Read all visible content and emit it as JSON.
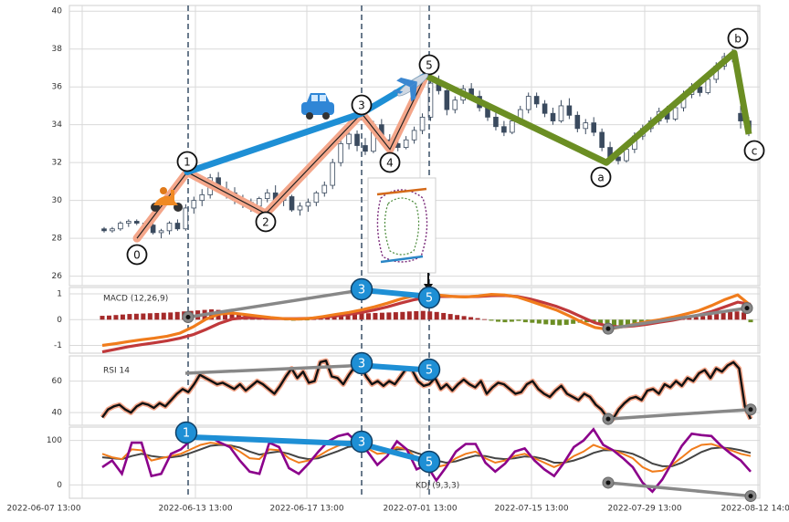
{
  "chart_data": [
    {
      "type": "candlestick",
      "panel": "price",
      "ylim": [
        25.5,
        40.3
      ],
      "yticks": [
        26,
        28,
        30,
        32,
        34,
        36,
        38,
        40
      ],
      "ohlc": [
        [
          28.5,
          28.6,
          28.3,
          28.4
        ],
        [
          28.4,
          28.6,
          28.3,
          28.5
        ],
        [
          28.5,
          28.9,
          28.4,
          28.8
        ],
        [
          28.8,
          29.0,
          28.6,
          28.9
        ],
        [
          28.9,
          29.0,
          28.7,
          28.8
        ],
        [
          28.8,
          28.9,
          28.6,
          28.7
        ],
        [
          28.7,
          28.8,
          28.2,
          28.3
        ],
        [
          28.3,
          28.5,
          28.0,
          28.4
        ],
        [
          28.4,
          28.9,
          28.2,
          28.8
        ],
        [
          28.8,
          29.0,
          28.4,
          28.5
        ],
        [
          28.5,
          29.8,
          28.4,
          29.6
        ],
        [
          29.6,
          30.2,
          29.3,
          30.0
        ],
        [
          30.0,
          30.6,
          29.7,
          30.3
        ],
        [
          30.3,
          31.4,
          30.1,
          31.2
        ],
        [
          31.2,
          31.5,
          30.4,
          30.6
        ],
        [
          30.6,
          31.0,
          30.1,
          30.4
        ],
        [
          30.4,
          30.7,
          29.8,
          30.0
        ],
        [
          30.0,
          30.3,
          29.6,
          29.9
        ],
        [
          29.9,
          30.1,
          29.4,
          29.7
        ],
        [
          29.7,
          30.2,
          29.5,
          30.1
        ],
        [
          30.1,
          30.6,
          29.9,
          30.4
        ],
        [
          30.4,
          30.8,
          29.9,
          30.0
        ],
        [
          30.0,
          30.4,
          29.7,
          30.2
        ],
        [
          30.2,
          30.3,
          29.4,
          29.5
        ],
        [
          29.5,
          29.9,
          29.2,
          29.7
        ],
        [
          29.7,
          30.1,
          29.4,
          29.9
        ],
        [
          29.9,
          30.5,
          29.7,
          30.4
        ],
        [
          30.4,
          31.0,
          30.2,
          30.8
        ],
        [
          30.8,
          32.2,
          30.6,
          32.0
        ],
        [
          32.0,
          33.2,
          31.8,
          33.0
        ],
        [
          33.0,
          33.8,
          32.7,
          33.5
        ],
        [
          33.5,
          33.7,
          32.6,
          32.9
        ],
        [
          32.9,
          33.3,
          32.4,
          32.6
        ],
        [
          32.6,
          34.2,
          32.5,
          34.0
        ],
        [
          34.0,
          34.3,
          33.0,
          33.2
        ],
        [
          33.2,
          33.5,
          32.8,
          33.0
        ],
        [
          33.0,
          33.3,
          32.6,
          32.8
        ],
        [
          32.8,
          33.4,
          32.7,
          33.2
        ],
        [
          33.2,
          33.9,
          33.0,
          33.7
        ],
        [
          33.7,
          34.6,
          33.5,
          34.4
        ],
        [
          34.4,
          36.5,
          34.2,
          36.2
        ],
        [
          36.2,
          36.6,
          35.6,
          35.8
        ],
        [
          35.8,
          36.0,
          34.5,
          34.8
        ],
        [
          34.8,
          35.5,
          34.6,
          35.3
        ],
        [
          35.3,
          36.1,
          35.1,
          35.9
        ],
        [
          35.9,
          36.2,
          35.3,
          35.5
        ],
        [
          35.5,
          35.8,
          34.7,
          34.9
        ],
        [
          34.9,
          35.2,
          34.2,
          34.4
        ],
        [
          34.4,
          34.7,
          33.7,
          33.9
        ],
        [
          33.9,
          34.2,
          33.4,
          33.6
        ],
        [
          33.6,
          34.4,
          33.5,
          34.2
        ],
        [
          34.2,
          35.0,
          34.0,
          34.8
        ],
        [
          34.8,
          35.7,
          34.6,
          35.5
        ],
        [
          35.5,
          35.7,
          34.9,
          35.1
        ],
        [
          35.1,
          35.3,
          34.4,
          34.6
        ],
        [
          34.6,
          34.9,
          34.0,
          34.2
        ],
        [
          34.2,
          35.3,
          34.1,
          35.0
        ],
        [
          35.0,
          35.4,
          34.3,
          34.5
        ],
        [
          34.5,
          34.7,
          33.6,
          33.8
        ],
        [
          33.8,
          34.3,
          33.5,
          34.1
        ],
        [
          34.1,
          34.4,
          33.4,
          33.6
        ],
        [
          33.6,
          33.8,
          32.6,
          32.8
        ],
        [
          32.8,
          33.1,
          32.1,
          32.3
        ],
        [
          32.3,
          32.5,
          31.9,
          32.1
        ],
        [
          32.1,
          32.9,
          32.0,
          32.7
        ],
        [
          32.7,
          33.6,
          32.5,
          33.4
        ],
        [
          33.4,
          34.0,
          33.2,
          33.8
        ],
        [
          33.8,
          34.4,
          33.6,
          34.2
        ],
        [
          34.2,
          34.9,
          34.0,
          34.7
        ],
        [
          34.7,
          35.0,
          34.1,
          34.3
        ],
        [
          34.3,
          35.1,
          34.2,
          34.9
        ],
        [
          34.9,
          35.8,
          34.7,
          35.6
        ],
        [
          35.6,
          36.2,
          35.4,
          36.0
        ],
        [
          36.0,
          36.3,
          35.5,
          35.7
        ],
        [
          35.7,
          36.6,
          35.6,
          36.4
        ],
        [
          36.4,
          37.3,
          36.2,
          37.1
        ],
        [
          37.1,
          37.8,
          36.9,
          37.6
        ],
        [
          37.6,
          38.0,
          37.3,
          37.5
        ],
        [
          34.6,
          35.0,
          33.8,
          34.2
        ],
        [
          34.2,
          34.4,
          33.4,
          33.6
        ]
      ],
      "elliott_impulse": {
        "labels": [
          "0",
          "1",
          "2",
          "3",
          "4",
          "5"
        ],
        "values": [
          28.0,
          31.5,
          29.3,
          34.6,
          32.7,
          36.6
        ]
      },
      "elliott_correction": {
        "labels": [
          "b",
          "c",
          "a"
        ],
        "values": [
          37.8,
          33.5,
          32.0
        ]
      },
      "wave_circle_labels": [
        "0",
        "1",
        "2",
        "3",
        "4",
        "5",
        "a",
        "b",
        "c"
      ]
    },
    {
      "type": "line",
      "panel": "macd",
      "title": "MACD (12,26,9)",
      "ylim": [
        -1.3,
        1.25
      ],
      "yticks": [
        -1,
        0,
        1
      ],
      "macd_line": [
        -1.0,
        -0.93,
        -0.85,
        -0.78,
        -0.72,
        -0.64,
        -0.52,
        -0.28,
        0.02,
        0.22,
        0.26,
        0.2,
        0.14,
        0.08,
        0.04,
        0.02,
        0.05,
        0.12,
        0.2,
        0.28,
        0.38,
        0.5,
        0.64,
        0.8,
        0.92,
        0.98,
        0.95,
        0.9,
        0.88,
        0.92,
        0.98,
        0.96,
        0.88,
        0.72,
        0.55,
        0.38,
        0.15,
        -0.1,
        -0.3,
        -0.38,
        -0.28,
        -0.18,
        -0.08,
        0.0,
        0.1,
        0.22,
        0.35,
        0.55,
        0.78,
        0.96,
        0.55
      ],
      "signal_line": [
        -1.25,
        -1.15,
        -1.05,
        -0.97,
        -0.9,
        -0.82,
        -0.72,
        -0.58,
        -0.38,
        -0.15,
        0.02,
        0.08,
        0.07,
        0.05,
        0.04,
        0.04,
        0.05,
        0.09,
        0.14,
        0.2,
        0.28,
        0.38,
        0.5,
        0.64,
        0.77,
        0.86,
        0.9,
        0.9,
        0.89,
        0.9,
        0.93,
        0.94,
        0.9,
        0.8,
        0.67,
        0.52,
        0.33,
        0.1,
        -0.12,
        -0.25,
        -0.28,
        -0.24,
        -0.18,
        -0.1,
        -0.02,
        0.08,
        0.18,
        0.32,
        0.5,
        0.68,
        0.6
      ],
      "histogram": [
        0.15,
        0.16,
        0.18,
        0.2,
        0.22,
        0.23,
        0.24,
        0.25,
        0.26,
        0.27,
        0.28,
        0.3,
        0.32,
        0.34,
        0.36,
        0.38,
        0.4,
        0.38,
        0.34,
        0.3,
        0.26,
        0.22,
        0.18,
        0.14,
        0.1,
        0.06,
        0.03,
        -0.02,
        -0.04,
        -0.03,
        -0.01,
        0.02,
        0.05,
        0.08,
        0.12,
        0.16,
        0.2,
        0.22,
        0.24,
        0.25,
        0.26,
        0.27,
        0.28,
        0.29,
        0.3,
        0.32,
        0.33,
        0.34,
        0.32,
        0.3,
        0.26,
        0.22,
        0.18,
        0.14,
        0.1,
        0.06,
        0.02,
        -0.04,
        -0.08,
        -0.1,
        -0.08,
        -0.05,
        -0.1,
        -0.12,
        -0.15,
        -0.18,
        -0.2,
        -0.22,
        -0.2,
        -0.16,
        -0.12,
        -0.1,
        -0.12,
        -0.15,
        -0.2,
        -0.22,
        -0.24,
        -0.25,
        -0.24,
        -0.22,
        -0.18,
        -0.15,
        -0.1,
        -0.06,
        -0.02,
        0.02,
        0.06,
        0.1,
        0.14,
        0.18,
        0.22,
        0.26,
        0.3,
        0.32,
        0.28,
        -0.1
      ],
      "wave_circle_labels": [
        "3",
        "5"
      ]
    },
    {
      "type": "line",
      "panel": "rsi",
      "title": "RSI 14",
      "ylim": [
        32,
        76
      ],
      "yticks": [
        40,
        60
      ],
      "values": [
        37,
        42,
        44,
        45,
        42,
        40,
        44,
        46,
        45,
        43,
        46,
        44,
        48,
        52,
        55,
        53,
        58,
        64,
        62,
        60,
        58,
        59,
        57,
        55,
        58,
        54,
        57,
        60,
        58,
        55,
        52,
        57,
        63,
        68,
        62,
        66,
        59,
        60,
        72,
        73,
        63,
        62,
        58,
        64,
        69,
        70,
        63,
        58,
        60,
        57,
        60,
        58,
        63,
        68,
        67,
        60,
        57,
        58,
        62,
        55,
        58,
        54,
        58,
        61,
        58,
        56,
        60,
        52,
        56,
        59,
        58,
        55,
        52,
        53,
        58,
        60,
        55,
        52,
        50,
        54,
        57,
        52,
        50,
        48,
        52,
        50,
        45,
        42,
        37,
        36,
        42,
        46,
        49,
        50,
        48,
        54,
        55,
        52,
        58,
        56,
        60,
        57,
        62,
        60,
        65,
        67,
        62,
        68,
        66,
        70,
        72,
        68,
        44,
        36
      ]
    },
    {
      "type": "line",
      "panel": "kdj",
      "title": "KDJ (9,3,3)",
      "ylim": [
        -30,
        130
      ],
      "yticks": [
        0,
        100
      ],
      "k_values": [
        70,
        62,
        58,
        80,
        78,
        55,
        60,
        65,
        70,
        80,
        90,
        95,
        92,
        88,
        75,
        60,
        58,
        80,
        78,
        60,
        50,
        55,
        65,
        78,
        88,
        95,
        90,
        82,
        70,
        72,
        85,
        80,
        60,
        55,
        40,
        45,
        60,
        70,
        75,
        60,
        50,
        55,
        65,
        70,
        60,
        50,
        40,
        50,
        65,
        75,
        90,
        82,
        78,
        70,
        60,
        40,
        30,
        32,
        45,
        62,
        80,
        90,
        92,
        85,
        78,
        70,
        65
      ],
      "d_values": [
        62,
        60,
        58,
        65,
        70,
        65,
        62,
        62,
        65,
        72,
        80,
        88,
        90,
        89,
        84,
        75,
        68,
        72,
        75,
        70,
        62,
        58,
        60,
        68,
        76,
        85,
        88,
        86,
        80,
        76,
        80,
        80,
        72,
        65,
        55,
        50,
        53,
        60,
        66,
        65,
        60,
        58,
        60,
        64,
        63,
        58,
        50,
        50,
        55,
        62,
        72,
        78,
        78,
        75,
        70,
        60,
        48,
        42,
        42,
        50,
        62,
        74,
        82,
        84,
        82,
        78,
        72
      ],
      "j_values": [
        40,
        55,
        25,
        95,
        95,
        20,
        25,
        70,
        80,
        100,
        110,
        108,
        95,
        85,
        55,
        30,
        25,
        95,
        85,
        38,
        25,
        48,
        75,
        98,
        110,
        115,
        95,
        75,
        45,
        65,
        98,
        80,
        35,
        45,
        10,
        40,
        75,
        92,
        92,
        50,
        30,
        48,
        75,
        82,
        55,
        35,
        20,
        50,
        85,
        100,
        125,
        90,
        78,
        60,
        40,
        5,
        -15,
        12,
        50,
        88,
        115,
        112,
        110,
        88,
        70,
        55,
        30
      ],
      "wave_circle_labels": [
        "1",
        "3",
        "5"
      ]
    }
  ],
  "x_axis_labels": [
    "2022-06-07 13:00",
    "2022-06-13 13:00",
    "2022-06-17 13:00",
    "2022-07-01 13:00",
    "2022-07-15 13:00",
    "2022-07-29 13:00",
    "2022-08-12 14:00"
  ],
  "colors": {
    "candle": "#3a4a5e",
    "impulse_line": "#f4a68a",
    "impulse_outline": "#222222",
    "trend_line": "#1e8fd5",
    "correction_line": "#6b8e23",
    "divergence_line": "#888888",
    "macd_line": "#f07c1c",
    "signal_line": "#c0393b",
    "hist_pos": "#a52a2a",
    "hist_neg": "#6b8e23",
    "rsi_line": "#111111",
    "rsi_glow": "#f4a68a",
    "k_line": "#f07c1c",
    "d_line": "#444444",
    "j_line": "#8b008b",
    "wave_badge": "#1e8fd5",
    "grid": "#d9d9d9",
    "vline": "#455a70"
  },
  "icons": [
    "scooter-icon",
    "car-icon",
    "airplane-icon",
    "racetrack-icon"
  ]
}
